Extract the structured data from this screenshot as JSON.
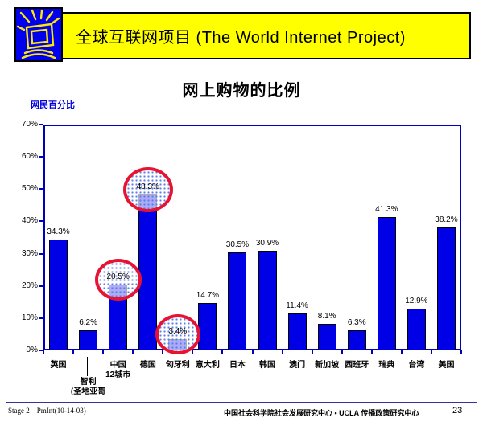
{
  "header": {
    "title": "全球互联网项目 (The World Internet Project)",
    "banner_color": "#ffff00",
    "logo_color": "#0000ee",
    "logo_icon": "shining-monitor-icon"
  },
  "chart_data": {
    "type": "bar",
    "title": "网上购物的比例",
    "ylabel": "网民百分比",
    "xlabel": "",
    "ylim": [
      0,
      70
    ],
    "grid": false,
    "legend": null,
    "yticks": [
      "0%",
      "10%",
      "20%",
      "30%",
      "40%",
      "50%",
      "60%",
      "70%"
    ],
    "categories": [
      "英国",
      "智利(圣地亚哥",
      "中国12城市",
      "德国",
      "匈牙利",
      "意大利",
      "日本",
      "韩国",
      "澳门",
      "新加坡",
      "西班牙",
      "瑞典",
      "台湾",
      "美国"
    ],
    "category_label_lines": [
      [
        "英国"
      ],
      [
        "智利",
        "(圣地亚哥"
      ],
      [
        "中国",
        "12城市"
      ],
      [
        "德国"
      ],
      [
        "匈牙利"
      ],
      [
        "意大利"
      ],
      [
        "日本"
      ],
      [
        "韩国"
      ],
      [
        "澳门"
      ],
      [
        "新加坡"
      ],
      [
        "西班牙"
      ],
      [
        "瑞典"
      ],
      [
        "台湾"
      ],
      [
        "美国"
      ]
    ],
    "values": [
      34.3,
      6.2,
      20.5,
      48.3,
      3.4,
      14.7,
      30.5,
      30.9,
      11.4,
      8.1,
      6.3,
      41.3,
      12.9,
      38.2
    ],
    "data_labels": [
      "34.3%",
      "6.2%",
      "20.5%",
      "48.3%",
      "3.4%",
      "14.7%",
      "30.5%",
      "30.9%",
      "11.4%",
      "8.1%",
      "6.3%",
      "41.3%",
      "12.9%",
      "38.2%"
    ],
    "circled_indices": [
      2,
      3,
      4
    ],
    "leader_line_index": 1,
    "bar_color": "#0000e6",
    "axis_color": "#0000bb",
    "highlight_circle_color": "#e61432",
    "ylabel_color": "#0000dd"
  },
  "footer": {
    "left": "Stage 2 – PmInt(10-14-03)",
    "center": "中国社会科学院社会发展研究中心 • UCLA 传播政策研究中心",
    "page_number": "23"
  }
}
